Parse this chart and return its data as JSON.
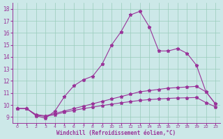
{
  "xlabel": "Windchill (Refroidissement éolien,°C)",
  "bg_color": "#cce8e8",
  "line_color": "#993399",
  "grid_color": "#99ccbb",
  "x_positions": [
    0,
    1,
    2,
    3,
    4,
    5,
    6,
    7,
    8,
    9,
    10,
    11,
    12,
    13,
    14,
    15,
    16,
    17,
    18,
    19,
    20,
    21
  ],
  "x_labels": [
    "0",
    "1",
    "2",
    "3",
    "4",
    "5",
    "6",
    "7",
    "8",
    "9",
    "10",
    "11",
    "12",
    "13",
    "14",
    "15",
    "16",
    "17",
    "18",
    "19",
    "22",
    "23"
  ],
  "xlim": [
    -0.5,
    21.5
  ],
  "ylim": [
    8.5,
    18.5
  ],
  "y_ticks": [
    9,
    10,
    11,
    12,
    13,
    14,
    15,
    16,
    17,
    18
  ],
  "series": [
    {
      "x": [
        0,
        1,
        2,
        3,
        4,
        5,
        6,
        7,
        8,
        9,
        10,
        11,
        12,
        13,
        14,
        15,
        16,
        17,
        18,
        19,
        20,
        21
      ],
      "y": [
        9.7,
        9.7,
        9.1,
        8.9,
        9.5,
        10.7,
        11.6,
        12.1,
        12.4,
        13.4,
        15.0,
        16.1,
        17.5,
        17.8,
        16.5,
        14.5,
        14.5,
        14.7,
        14.3,
        13.3,
        11.1,
        10.1
      ]
    },
    {
      "x": [
        0,
        1,
        2,
        3,
        4,
        5,
        6,
        7,
        8,
        9,
        10,
        11,
        12,
        13,
        14,
        15,
        16,
        17,
        18,
        19,
        20,
        21
      ],
      "y": [
        9.7,
        9.7,
        9.2,
        9.1,
        9.3,
        9.5,
        9.7,
        9.9,
        10.1,
        10.3,
        10.5,
        10.7,
        10.9,
        11.1,
        11.2,
        11.3,
        11.4,
        11.45,
        11.5,
        11.55,
        11.1,
        10.1
      ]
    },
    {
      "x": [
        0,
        1,
        2,
        3,
        4,
        5,
        6,
        7,
        8,
        9,
        10,
        11,
        12,
        13,
        14,
        15,
        16,
        17,
        18,
        19,
        20,
        21
      ],
      "y": [
        9.7,
        9.7,
        9.15,
        9.05,
        9.2,
        9.4,
        9.55,
        9.7,
        9.82,
        9.95,
        10.07,
        10.18,
        10.28,
        10.38,
        10.45,
        10.5,
        10.55,
        10.58,
        10.6,
        10.62,
        10.2,
        9.85
      ]
    }
  ]
}
